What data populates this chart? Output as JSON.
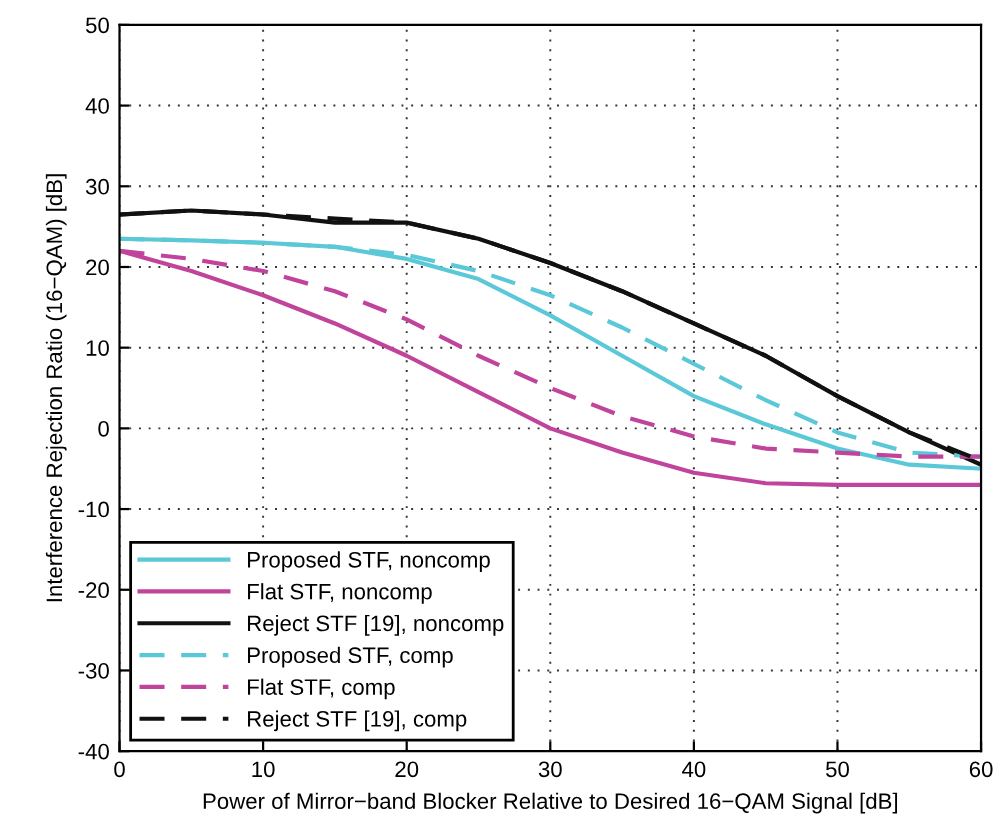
{
  "chart_data": {
    "type": "line",
    "xlabel": "Power of Mirror−band Blocker Relative to Desired 16−QAM Signal [dB]",
    "ylabel": "Interference Rejection Ratio (16−QAM) [dB]",
    "x": [
      0,
      5,
      10,
      15,
      20,
      25,
      30,
      35,
      40,
      45,
      50,
      55,
      60
    ],
    "series": [
      {
        "name": "Proposed STF, noncomp",
        "color": "#5bc8d8",
        "line_style": "solid",
        "values": [
          23.5,
          23.3,
          23,
          22.5,
          21,
          18.5,
          14,
          9,
          4,
          0.5,
          -2.5,
          -4.5,
          -5
        ]
      },
      {
        "name": "Flat STF, noncomp",
        "color": "#c0449c",
        "line_style": "solid",
        "values": [
          22,
          19.5,
          16.5,
          13,
          9,
          4.5,
          0,
          -3,
          -5.5,
          -6.8,
          -7,
          -7,
          -7
        ]
      },
      {
        "name": "Reject STF [19], noncomp",
        "color": "#111111",
        "line_style": "solid",
        "values": [
          26.5,
          27,
          26.5,
          25.5,
          25.5,
          23.5,
          20.5,
          17,
          13,
          9,
          4,
          -0.5,
          -4.5
        ]
      },
      {
        "name": "Proposed STF, comp",
        "color": "#5bc8d8",
        "line_style": "dashed",
        "values": [
          23.5,
          23.3,
          23,
          22.5,
          21.5,
          19.5,
          16.5,
          12.5,
          8,
          3.5,
          -0.5,
          -3,
          -3.5
        ]
      },
      {
        "name": "Flat STF, comp",
        "color": "#c0449c",
        "line_style": "dashed",
        "values": [
          22,
          21,
          19.5,
          17,
          13.5,
          9,
          5,
          1.5,
          -1,
          -2.5,
          -3,
          -3.5,
          -3.5
        ]
      },
      {
        "name": "Reject STF [19], comp",
        "color": "#111111",
        "line_style": "dashed",
        "values": [
          26.5,
          27,
          26.5,
          26,
          25.5,
          23.5,
          20.5,
          17,
          13,
          9,
          4,
          -0.5,
          -4
        ]
      }
    ],
    "xlim": [
      0,
      60
    ],
    "xticks": [
      0,
      10,
      20,
      30,
      40,
      50,
      60
    ],
    "ylim": [
      -40,
      50
    ],
    "yticks": [
      -40,
      -30,
      -20,
      -10,
      0,
      10,
      20,
      30,
      40,
      50
    ],
    "grid": true,
    "legend": "bottom left",
    "marker": "none"
  }
}
